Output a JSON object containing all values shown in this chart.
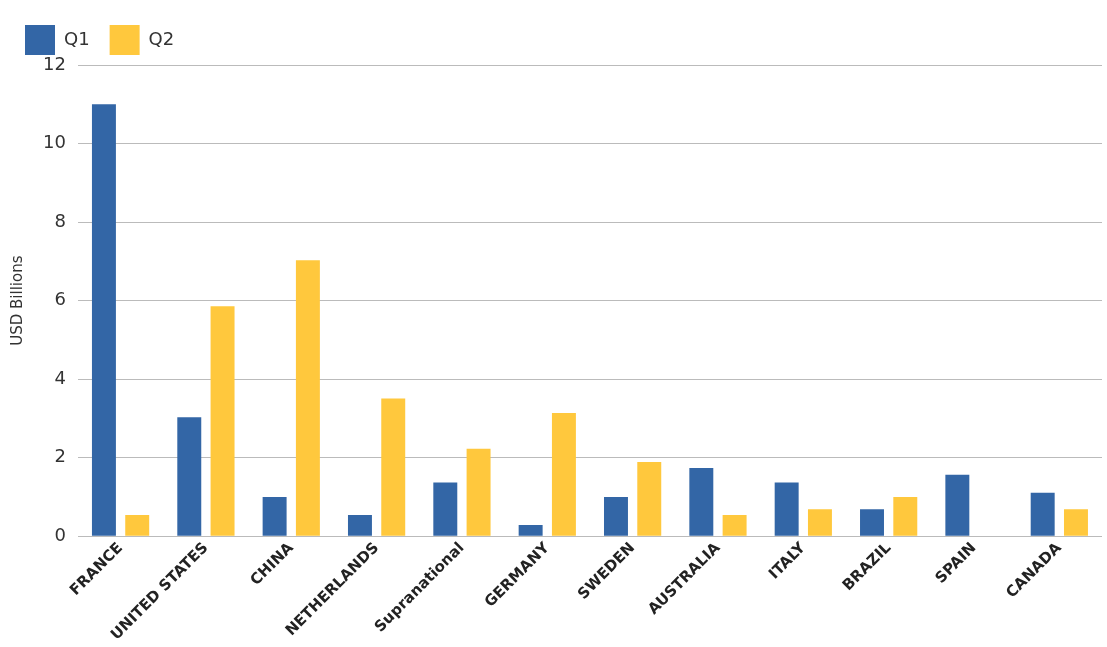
{
  "chart_data": {
    "type": "bar",
    "ylabel": "USD Billions",
    "categories": [
      "FRANCE",
      "UNITED STATES",
      "CHINA",
      "NETHERLANDS",
      "Supranational",
      "GERMANY",
      "SWEDEN",
      "AUSTRALIA",
      "ITALY",
      "BRAZIL",
      "SPAIN",
      "CANADA"
    ],
    "series": [
      {
        "name": "Q1",
        "color": "#3366a6",
        "values": [
          11.0,
          3.03,
          1.0,
          0.54,
          1.37,
          0.29,
          1.0,
          1.74,
          1.37,
          0.69,
          1.57,
          1.11
        ]
      },
      {
        "name": "Q2",
        "color": "#ffc83d",
        "values": [
          0.54,
          5.86,
          7.03,
          3.51,
          2.23,
          3.14,
          1.89,
          0.54,
          0.69,
          1.0,
          null,
          0.69
        ]
      }
    ],
    "ylim": [
      0,
      12
    ],
    "yticks": [
      0,
      2,
      4,
      6,
      8,
      10,
      12
    ],
    "grid": "y",
    "legend": "top left"
  }
}
